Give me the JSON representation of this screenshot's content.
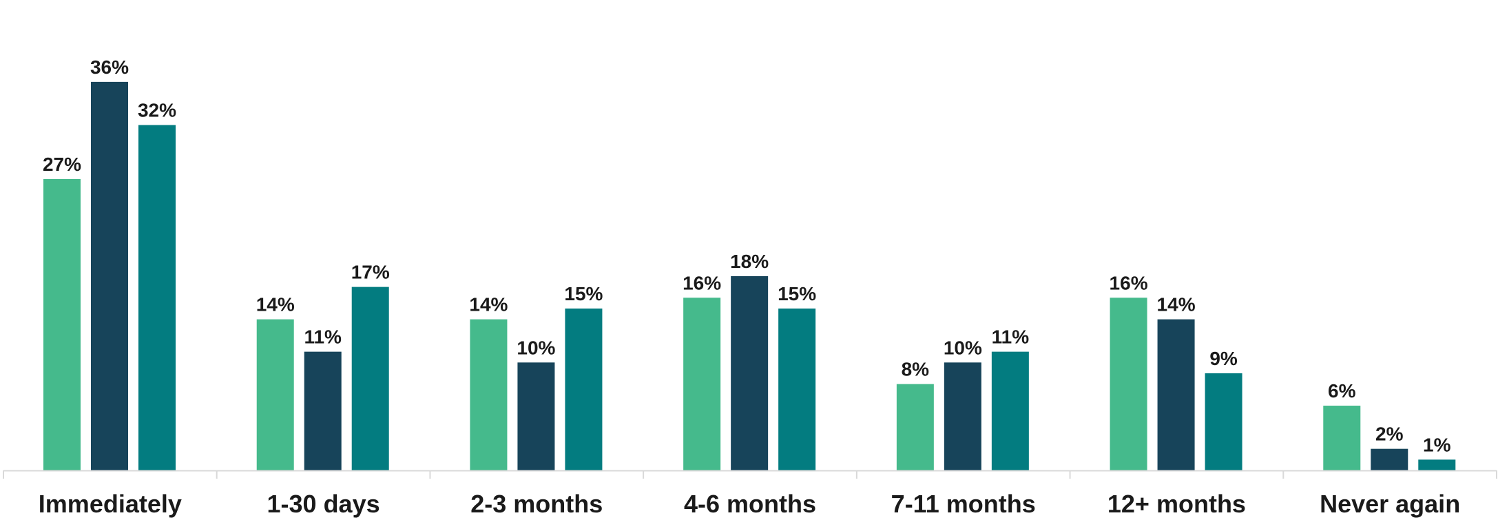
{
  "chart_data": {
    "type": "bar",
    "categories": [
      "Immediately",
      "1-30 days",
      "2-3 months",
      "4-6 months",
      "7-11 months",
      "12+ months",
      "Never again"
    ],
    "series": [
      {
        "values": [
          27,
          14,
          14,
          16,
          8,
          16,
          6
        ],
        "color": "#45BA8C"
      },
      {
        "values": [
          36,
          11,
          10,
          18,
          10,
          14,
          2
        ],
        "color": "#17445A"
      },
      {
        "values": [
          32,
          17,
          15,
          15,
          11,
          9,
          1
        ],
        "color": "#037C80"
      }
    ],
    "value_suffix": "%",
    "ylim": [
      0,
      40
    ],
    "grid": false,
    "legend": "none",
    "axis_color": "#d9d9d9"
  }
}
